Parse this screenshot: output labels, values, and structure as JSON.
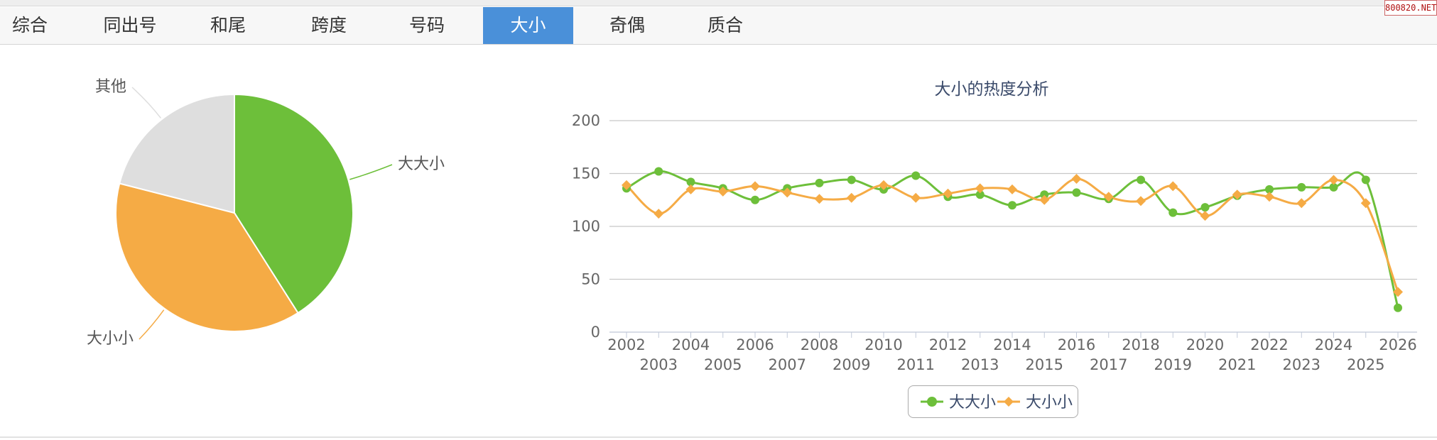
{
  "tabs": [
    {
      "label": "综合",
      "active": false
    },
    {
      "label": "同出号",
      "active": false
    },
    {
      "label": "和尾",
      "active": false
    },
    {
      "label": "跨度",
      "active": false
    },
    {
      "label": "号码",
      "active": false
    },
    {
      "label": "大小",
      "active": true
    },
    {
      "label": "奇偶",
      "active": false
    },
    {
      "label": "质合",
      "active": false
    }
  ],
  "watermark": "800820.NET",
  "colors": {
    "green": "#6dbf3a",
    "orange": "#f5ab45",
    "gray": "#dedede",
    "tab_active": "#4a90d9"
  },
  "chart_data": [
    {
      "type": "pie",
      "slices": [
        {
          "label": "大大小",
          "value": 41,
          "color": "#6dbf3a"
        },
        {
          "label": "大小小",
          "value": 38,
          "color": "#f5ab45"
        },
        {
          "label": "其他",
          "value": 21,
          "color": "#dedede"
        }
      ]
    },
    {
      "type": "line",
      "title": "大小的热度分析",
      "x": [
        "2002",
        "2003",
        "2004",
        "2005",
        "2006",
        "2007",
        "2008",
        "2009",
        "2010",
        "2011",
        "2012",
        "2013",
        "2014",
        "2015",
        "2016",
        "2017",
        "2018",
        "2019",
        "2020",
        "2021",
        "2022",
        "2023",
        "2024",
        "2025",
        "2026"
      ],
      "ylim": [
        0,
        200
      ],
      "yticks": [
        0,
        50,
        100,
        150,
        200
      ],
      "grid": true,
      "legend": "bottom",
      "series": [
        {
          "name": "大大小",
          "color": "#6dbf3a",
          "marker": "circle",
          "values": [
            136,
            152,
            142,
            136,
            125,
            136,
            141,
            144,
            135,
            148,
            128,
            130,
            120,
            130,
            132,
            126,
            144,
            113,
            118,
            129,
            135,
            137,
            137,
            144,
            23
          ]
        },
        {
          "name": "大小小",
          "color": "#f5ab45",
          "marker": "diamond",
          "values": [
            139,
            112,
            135,
            133,
            138,
            132,
            126,
            127,
            139,
            127,
            131,
            136,
            135,
            125,
            145,
            128,
            124,
            138,
            110,
            130,
            128,
            122,
            144,
            122,
            38
          ]
        }
      ]
    }
  ]
}
